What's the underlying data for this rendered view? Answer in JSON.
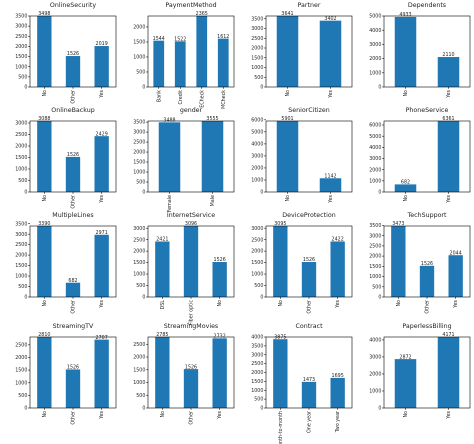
{
  "style": {
    "bar_color": "#1f77b4",
    "axis_color": "#000000",
    "text_color": "#222222"
  },
  "chart_data": [
    {
      "type": "bar",
      "title": "OnlineSecurity",
      "categories": [
        "No",
        "Other",
        "Yes"
      ],
      "values": [
        3498,
        1526,
        2019
      ],
      "ylim": [
        0,
        3500
      ],
      "yticks": [
        0,
        500,
        1000,
        1500,
        2000,
        2500,
        3000,
        3500
      ]
    },
    {
      "type": "bar",
      "title": "PaymentMethod",
      "categories": [
        "Bank",
        "Credit",
        "ECheck",
        "MCheck"
      ],
      "values": [
        1544,
        1522,
        2365,
        1612
      ],
      "ylim": [
        0,
        2365
      ],
      "yticks": [
        0,
        500,
        1000,
        1500,
        2000
      ]
    },
    {
      "type": "bar",
      "title": "Partner",
      "categories": [
        "No",
        "Yes"
      ],
      "values": [
        3641,
        3402
      ],
      "ylim": [
        0,
        3641
      ],
      "yticks": [
        0,
        500,
        1000,
        1500,
        2000,
        2500,
        3000,
        3500
      ]
    },
    {
      "type": "bar",
      "title": "Dependents",
      "categories": [
        "No",
        "Yes"
      ],
      "values": [
        4933,
        2110
      ],
      "ylim": [
        0,
        5000
      ],
      "yticks": [
        0,
        1000,
        2000,
        3000,
        4000,
        5000
      ]
    },
    {
      "type": "bar",
      "title": "OnlineBackup",
      "categories": [
        "No",
        "Other",
        "Yes"
      ],
      "values": [
        3088,
        1526,
        2429
      ],
      "ylim": [
        0,
        3088
      ],
      "yticks": [
        0,
        500,
        1000,
        1500,
        2000,
        2500,
        3000
      ]
    },
    {
      "type": "bar",
      "title": "gender",
      "categories": [
        "Female",
        "Male"
      ],
      "values": [
        3488,
        3555
      ],
      "ylim": [
        0,
        3555
      ],
      "yticks": [
        0,
        500,
        1000,
        1500,
        2000,
        2500,
        3000,
        3500
      ]
    },
    {
      "type": "bar",
      "title": "SeniorCitizen",
      "categories": [
        "No",
        "Yes"
      ],
      "values": [
        5901,
        1142
      ],
      "ylim": [
        0,
        5901
      ],
      "yticks": [
        0,
        1000,
        2000,
        3000,
        4000,
        5000,
        6000
      ]
    },
    {
      "type": "bar",
      "title": "PhoneService",
      "categories": [
        "No",
        "Yes"
      ],
      "values": [
        682,
        6361
      ],
      "ylim": [
        0,
        6361
      ],
      "yticks": [
        0,
        1000,
        2000,
        3000,
        4000,
        5000,
        6000
      ]
    },
    {
      "type": "bar",
      "title": "MultipleLines",
      "categories": [
        "No",
        "Other",
        "Yes"
      ],
      "values": [
        3390,
        682,
        2971
      ],
      "ylim": [
        0,
        3390
      ],
      "yticks": [
        0,
        500,
        1000,
        1500,
        2000,
        2500,
        3000,
        3500
      ]
    },
    {
      "type": "bar",
      "title": "InternetService",
      "categories": [
        "DSL",
        "Fiber optic",
        "No"
      ],
      "values": [
        2421,
        3096,
        1526
      ],
      "ylim": [
        0,
        3096
      ],
      "yticks": [
        0,
        500,
        1000,
        1500,
        2000,
        2500,
        3000
      ]
    },
    {
      "type": "bar",
      "title": "DeviceProtection",
      "categories": [
        "No",
        "Other",
        "Yes"
      ],
      "values": [
        3095,
        1526,
        2422
      ],
      "ylim": [
        0,
        3095
      ],
      "yticks": [
        0,
        500,
        1000,
        1500,
        2000,
        2500,
        3000
      ]
    },
    {
      "type": "bar",
      "title": "TechSupport",
      "categories": [
        "No",
        "Other",
        "Yes"
      ],
      "values": [
        3473,
        1526,
        2044
      ],
      "ylim": [
        0,
        3473
      ],
      "yticks": [
        0,
        500,
        1000,
        1500,
        2000,
        2500,
        3000,
        3500
      ]
    },
    {
      "type": "bar",
      "title": "StreamingTV",
      "categories": [
        "No",
        "Other",
        "Yes"
      ],
      "values": [
        2810,
        1526,
        2707
      ],
      "ylim": [
        0,
        2810
      ],
      "yticks": [
        0,
        500,
        1000,
        1500,
        2000,
        2500
      ]
    },
    {
      "type": "bar",
      "title": "StreamingMovies",
      "categories": [
        "No",
        "Other",
        "Yes"
      ],
      "values": [
        2785,
        1526,
        2732
      ],
      "ylim": [
        0,
        2785
      ],
      "yticks": [
        0,
        500,
        1000,
        1500,
        2000,
        2500
      ]
    },
    {
      "type": "bar",
      "title": "Contract",
      "categories": [
        "Month-to-month",
        "One year",
        "Two year"
      ],
      "values": [
        3875,
        1473,
        1695
      ],
      "ylim": [
        0,
        4000
      ],
      "yticks": [
        0,
        500,
        1000,
        1500,
        2000,
        2500,
        3000,
        3500,
        4000
      ]
    },
    {
      "type": "bar",
      "title": "PaperlessBilling",
      "categories": [
        "No",
        "Yes"
      ],
      "values": [
        2872,
        4171
      ],
      "ylim": [
        0,
        4171
      ],
      "yticks": [
        0,
        1000,
        2000,
        3000,
        4000
      ]
    }
  ]
}
